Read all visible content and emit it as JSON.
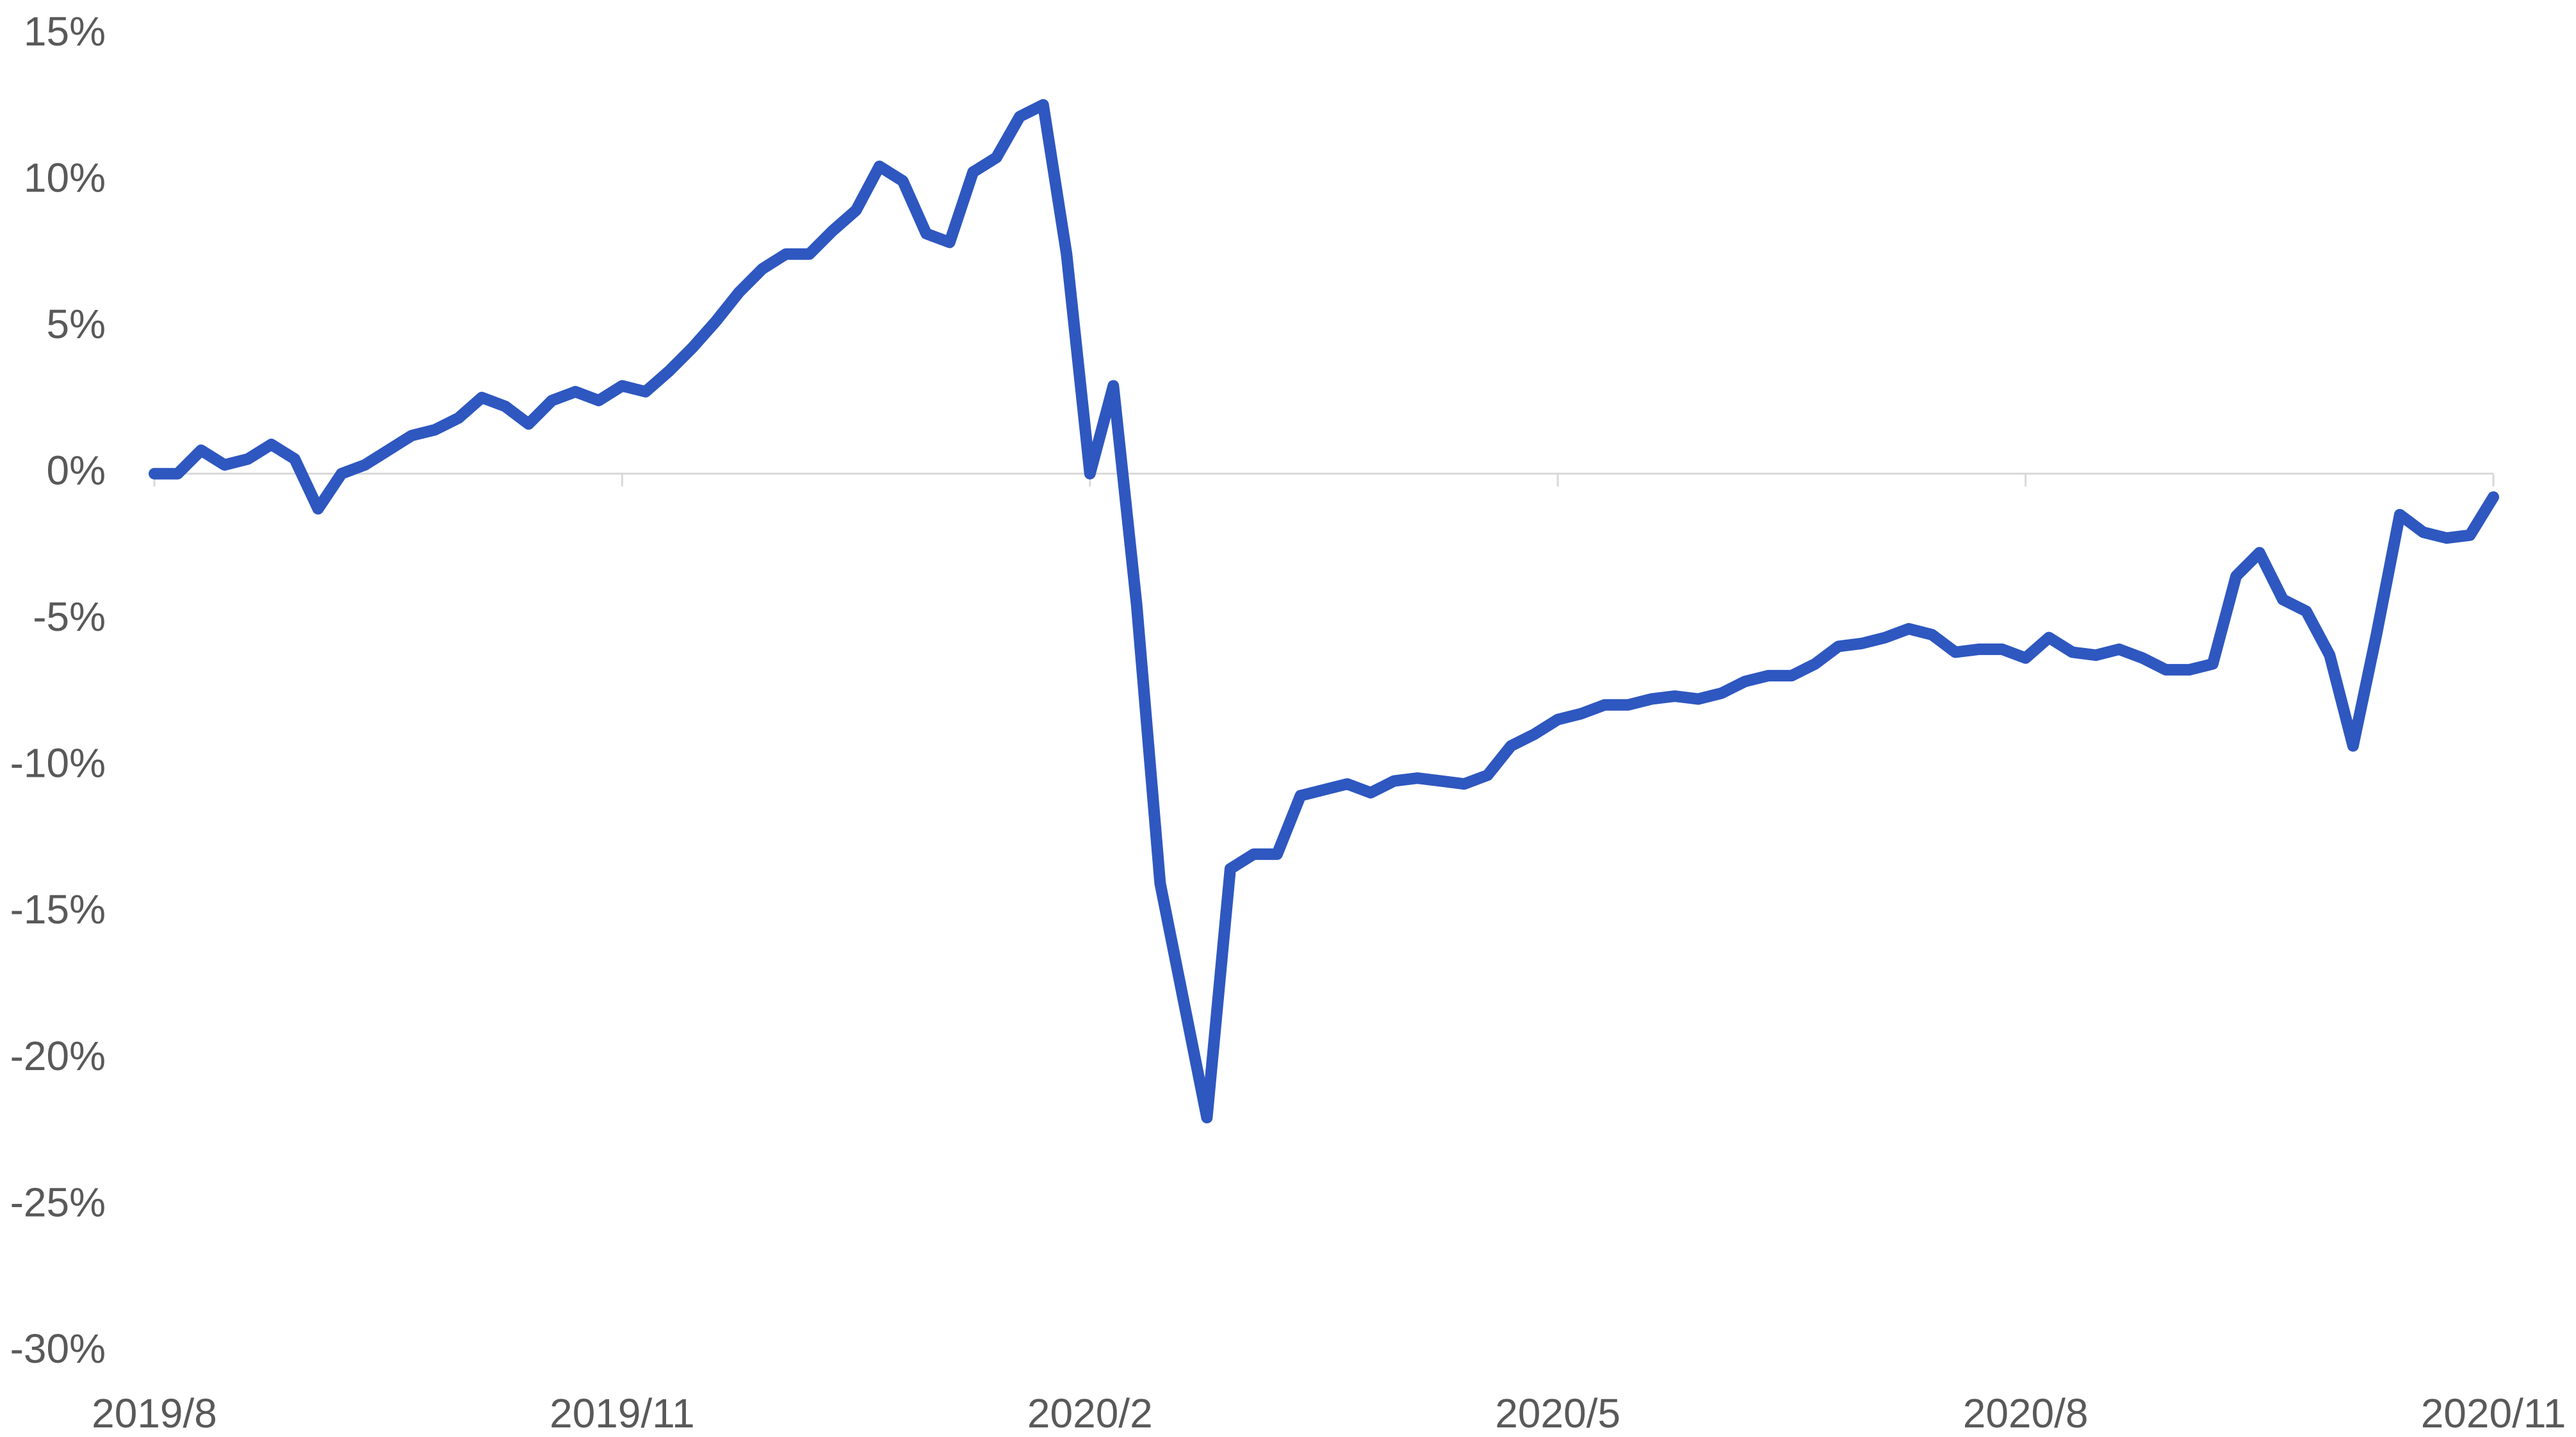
{
  "chart_data": {
    "type": "line",
    "categories": [
      "2019/8",
      null,
      null,
      null,
      null,
      null,
      null,
      null,
      null,
      null,
      null,
      null,
      null,
      null,
      null,
      null,
      null,
      null,
      null,
      null,
      "2019/11",
      null,
      null,
      null,
      null,
      null,
      null,
      null,
      null,
      null,
      null,
      null,
      null,
      null,
      null,
      null,
      null,
      null,
      null,
      null,
      "2020/2",
      null,
      null,
      null,
      null,
      null,
      null,
      null,
      null,
      null,
      null,
      null,
      null,
      null,
      null,
      null,
      null,
      null,
      null,
      null,
      "2020/5",
      null,
      null,
      null,
      null,
      null,
      null,
      null,
      null,
      null,
      null,
      null,
      null,
      null,
      null,
      null,
      null,
      null,
      null,
      null,
      "2020/8",
      null,
      null,
      null,
      null,
      null,
      null,
      null,
      null,
      null,
      null,
      null,
      null,
      null,
      null,
      null,
      null,
      null,
      null,
      null,
      "2020/11"
    ],
    "series": [
      {
        "color": "#2e57c0",
        "values": [
          0,
          0,
          0.8,
          0.3,
          0.5,
          1.0,
          0.5,
          -1.2,
          0,
          0.3,
          0.8,
          1.3,
          1.5,
          1.9,
          2.6,
          2.3,
          1.7,
          2.5,
          2.8,
          2.5,
          3.0,
          2.8,
          3.5,
          4.3,
          5.2,
          6.2,
          7.0,
          7.5,
          7.5,
          8.3,
          9.0,
          10.5,
          10.0,
          8.2,
          7.9,
          10.3,
          10.8,
          12.2,
          12.6,
          7.5,
          0,
          3.0,
          -4.5,
          -14,
          -18,
          -22,
          -13.5,
          -13,
          -13,
          -11,
          -10.8,
          -10.6,
          -10.9,
          -10.5,
          -10.4,
          -10.5,
          -10.6,
          -10.3,
          -9.3,
          -8.9,
          -8.4,
          -8.2,
          -7.9,
          -7.9,
          -7.7,
          -7.6,
          -7.7,
          -7.5,
          -7.1,
          -6.9,
          -6.9,
          -6.5,
          -5.9,
          -5.8,
          -5.6,
          -5.3,
          -5.5,
          -6.1,
          -6.0,
          -6.0,
          -6.3,
          -5.6,
          -6.1,
          -6.2,
          -6.0,
          -6.3,
          -6.7,
          -6.7,
          -6.5,
          -3.5,
          -2.7,
          -4.3,
          -4.7,
          -6.2,
          -9.3,
          -5.5,
          -1.4,
          -2.0,
          -2.2,
          -2.1,
          -0.8
        ]
      }
    ],
    "ylim": [
      -30,
      15
    ],
    "yticks": [
      {
        "value": 15,
        "label": "15%"
      },
      {
        "value": 10,
        "label": "10%"
      },
      {
        "value": 5,
        "label": "5%"
      },
      {
        "value": 0,
        "label": "0%"
      },
      {
        "value": -5,
        "label": "-5%"
      },
      {
        "value": -10,
        "label": "-10%"
      },
      {
        "value": -15,
        "label": "-15%"
      },
      {
        "value": -20,
        "label": "-20%"
      },
      {
        "value": -25,
        "label": "-25%"
      },
      {
        "value": -30,
        "label": "-30%"
      }
    ],
    "grid": false
  }
}
